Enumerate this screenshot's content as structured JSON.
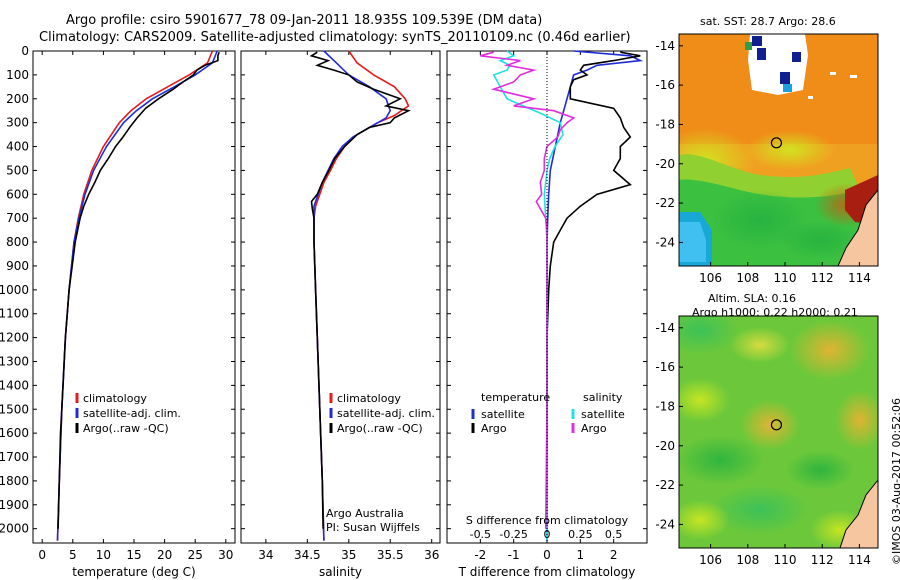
{
  "title_line1": "Argo profile: csiro 5901677_78 09-Jan-2011 18.935S 109.539E (DM data)",
  "title_line2": "Climatology: CARS2009. Satellite-adjusted climatology: synTS_20110109.nc (0.46d earlier)",
  "timestamp": "©IMOS 03-Aug-2017 00:52:06",
  "colors": {
    "climatology": "#e21b1b",
    "satellite": "#1f2bd6",
    "argo": "#000000",
    "s_satellite": "#22e0e8",
    "s_argo": "#e12de0"
  },
  "chart_data": [
    {
      "type": "line",
      "title": "",
      "xlabel": "temperature (deg C)",
      "ylabel": "",
      "xlim": [
        -1.5,
        31.5
      ],
      "ylim": [
        2060,
        0
      ],
      "yticks": [
        "0",
        "100",
        "200",
        "300",
        "400",
        "500",
        "600",
        "700",
        "800",
        "900",
        "1000",
        "1100",
        "1200",
        "1300",
        "1400",
        "1500",
        "1600",
        "1700",
        "1800",
        "1900",
        "2000"
      ],
      "xticks": [
        "0",
        "5",
        "10",
        "15",
        "20",
        "25",
        "30"
      ],
      "legend": [
        "climatology",
        "satellite-adj. clim.",
        "Argo(..raw -QC)"
      ],
      "series": [
        {
          "name": "climatology",
          "depth": [
            0,
            50,
            100,
            150,
            200,
            250,
            300,
            400,
            500,
            600,
            700,
            800,
            1000,
            1200,
            1500,
            1800,
            2050
          ],
          "values": [
            27.8,
            27.0,
            24.0,
            20.5,
            17.0,
            14.5,
            12.6,
            10.0,
            8.1,
            6.8,
            5.9,
            5.2,
            4.4,
            3.8,
            3.2,
            2.8,
            2.5
          ]
        },
        {
          "name": "satellite-adj. clim.",
          "depth": [
            0,
            50,
            100,
            150,
            200,
            250,
            300,
            400,
            500,
            600,
            700,
            800,
            1000,
            1200,
            1500,
            1800,
            2050
          ],
          "values": [
            28.6,
            27.8,
            25.0,
            21.6,
            18.0,
            15.4,
            13.3,
            10.5,
            8.4,
            7.0,
            6.0,
            5.2,
            4.4,
            3.8,
            3.2,
            2.8,
            2.5
          ]
        },
        {
          "name": "Argo(..raw -QC)",
          "depth": [
            5,
            20,
            40,
            60,
            80,
            100,
            130,
            160,
            200,
            240,
            280,
            320,
            360,
            400,
            450,
            500,
            550,
            600,
            650,
            700,
            800,
            900,
            1000,
            1100,
            1200,
            1300,
            1400,
            1500,
            1600,
            1700,
            1800,
            1900,
            2000
          ],
          "values": [
            28.9,
            28.7,
            28.7,
            26.6,
            25.3,
            24.7,
            23.0,
            21.4,
            19.0,
            16.9,
            15.5,
            14.3,
            13.2,
            12.0,
            10.8,
            9.5,
            8.6,
            7.6,
            6.8,
            6.2,
            5.4,
            4.9,
            4.4,
            4.1,
            3.8,
            3.6,
            3.4,
            3.2,
            3.0,
            2.9,
            2.8,
            2.7,
            2.6
          ]
        }
      ]
    },
    {
      "type": "line",
      "title": "",
      "xlabel": "salinity",
      "ylabel": "",
      "xlim": [
        33.7,
        36.1
      ],
      "ylim": [
        2060,
        0
      ],
      "xticks": [
        "34",
        "34.5",
        "35",
        "35.5",
        "36"
      ],
      "legend": [
        "climatology",
        "satellite-adj. clim.",
        "Argo(..raw -QC)"
      ],
      "annotation": [
        "Argo Australia",
        "PI: Susan Wijffels"
      ],
      "series": [
        {
          "name": "climatology",
          "depth": [
            0,
            50,
            100,
            150,
            200,
            230,
            270,
            300,
            350,
            400,
            450,
            500,
            550,
            600,
            650,
            700,
            800,
            1000,
            1200,
            1500,
            1800,
            2050
          ],
          "values": [
            35.0,
            35.1,
            35.3,
            35.55,
            35.68,
            35.72,
            35.55,
            35.35,
            35.1,
            34.95,
            34.85,
            34.78,
            34.7,
            34.65,
            34.6,
            34.58,
            34.58,
            34.6,
            34.62,
            34.65,
            34.68,
            34.7
          ]
        },
        {
          "name": "satellite-adj. clim.",
          "depth": [
            0,
            50,
            100,
            150,
            200,
            250,
            280,
            320,
            360,
            400,
            450,
            500,
            550,
            600,
            650,
            700,
            800,
            1000,
            1200,
            1500,
            1800,
            2050
          ],
          "values": [
            34.7,
            34.85,
            35.0,
            35.25,
            35.45,
            35.5,
            35.45,
            35.25,
            35.05,
            34.92,
            34.82,
            34.75,
            34.68,
            34.63,
            34.58,
            34.58,
            34.58,
            34.6,
            34.62,
            34.65,
            34.68,
            34.7
          ]
        },
        {
          "name": "Argo(..raw -QC)",
          "depth": [
            5,
            20,
            40,
            60,
            80,
            100,
            130,
            160,
            200,
            230,
            250,
            280,
            300,
            320,
            350,
            400,
            450,
            500,
            550,
            600,
            630,
            660,
            700,
            800,
            900,
            1000,
            1200,
            1500,
            1800,
            2000
          ],
          "values": [
            34.62,
            34.55,
            34.75,
            34.62,
            34.82,
            35.0,
            35.1,
            35.3,
            35.62,
            35.45,
            35.72,
            35.55,
            35.5,
            35.25,
            35.1,
            34.95,
            34.83,
            34.76,
            34.68,
            34.62,
            34.55,
            34.56,
            34.58,
            34.58,
            34.59,
            34.6,
            34.62,
            34.65,
            34.68,
            34.69
          ]
        }
      ]
    },
    {
      "type": "line",
      "title": "",
      "xlabel": "T difference from climatology",
      "x2label": "S difference from climatology",
      "ylabel": "",
      "xlim": [
        -3,
        3
      ],
      "ylim": [
        2060,
        0
      ],
      "xticks": [
        "-2",
        "-1",
        "0",
        "1",
        "2"
      ],
      "s_xticks": [
        "-0.5",
        "-0.25",
        "0",
        "0.25",
        "0.5"
      ],
      "legend_temperature": {
        "heading": "temperature",
        "items": [
          "satellite",
          "Argo"
        ]
      },
      "legend_salinity": {
        "heading": "salinity",
        "items": [
          "satellite",
          "Argo"
        ]
      },
      "series": [
        {
          "name": "temperature satellite",
          "depth": [
            0,
            20,
            40,
            60,
            80,
            100,
            150,
            200,
            250,
            300,
            400,
            500,
            600,
            700,
            800,
            1000,
            1500,
            2050
          ],
          "values": [
            0.8,
            2.5,
            2.8,
            1.5,
            1.2,
            0.8,
            0.7,
            0.6,
            0.5,
            0.4,
            0.25,
            0.1,
            0.05,
            0.02,
            0.0,
            0.0,
            0.0,
            0.0
          ]
        },
        {
          "name": "temperature Argo",
          "depth": [
            5,
            20,
            40,
            60,
            80,
            100,
            120,
            150,
            200,
            240,
            280,
            320,
            360,
            400,
            450,
            500,
            560,
            600,
            650,
            700,
            750,
            800,
            900,
            1000,
            1200,
            1500,
            1800,
            2000
          ],
          "values": [
            2.2,
            2.8,
            2.0,
            1.1,
            1.0,
            1.2,
            0.8,
            0.7,
            0.7,
            2.0,
            2.2,
            2.3,
            2.5,
            2.2,
            2.2,
            2.0,
            2.5,
            1.5,
            1.0,
            0.6,
            0.4,
            0.2,
            0.1,
            0.05,
            0.0,
            0.0,
            0.0,
            0.0
          ]
        },
        {
          "name": "salinity satellite",
          "depth": [
            0,
            20,
            40,
            60,
            80,
            100,
            150,
            200,
            230,
            260,
            300,
            350,
            400,
            450,
            500,
            550,
            600,
            700,
            800,
            1000,
            1500,
            2050
          ],
          "values": [
            -0.3,
            -0.25,
            -0.35,
            -0.28,
            -0.3,
            -0.4,
            -0.35,
            -0.3,
            -0.18,
            -0.05,
            0.1,
            0.12,
            0.06,
            0.02,
            0.0,
            -0.01,
            -0.02,
            -0.01,
            0.0,
            0.0,
            0.0,
            0.0
          ]
        },
        {
          "name": "salinity Argo",
          "depth": [
            5,
            20,
            40,
            60,
            80,
            100,
            130,
            160,
            200,
            230,
            250,
            280,
            300,
            330,
            360,
            400,
            450,
            500,
            550,
            600,
            630,
            660,
            700,
            750,
            800,
            1000,
            1500,
            2000
          ],
          "values": [
            -0.4,
            -0.5,
            -0.2,
            -0.3,
            -0.1,
            -0.2,
            -0.25,
            -0.4,
            -0.1,
            -0.25,
            0.05,
            0.2,
            0.15,
            0.1,
            0.08,
            0.0,
            -0.02,
            -0.02,
            -0.05,
            -0.04,
            -0.08,
            -0.05,
            -0.01,
            0.0,
            0.0,
            0.0,
            0.0,
            -0.01
          ]
        }
      ]
    },
    {
      "type": "heatmap",
      "title": "sat. SST: 28.7 Argo: 28.6",
      "xticks": [
        "106",
        "108",
        "110",
        "112",
        "114"
      ],
      "yticks": [
        "-14",
        "-16",
        "-18",
        "-20",
        "-22",
        "-24"
      ],
      "xlim": [
        104.3,
        115
      ],
      "ylim": [
        -25.2,
        -13.4
      ],
      "marker": {
        "lon": 109.539,
        "lat": -18.935
      }
    },
    {
      "type": "heatmap",
      "title": "Altim. SLA: 0.16",
      "subtitle": "Argo h1000: 0.22 h2000: 0.21",
      "xticks": [
        "106",
        "108",
        "110",
        "112",
        "114"
      ],
      "yticks": [
        "-14",
        "-16",
        "-18",
        "-20",
        "-22",
        "-24"
      ],
      "xlim": [
        104.3,
        115
      ],
      "ylim": [
        -25.2,
        -13.4
      ],
      "marker": {
        "lon": 109.539,
        "lat": -18.935
      }
    }
  ]
}
